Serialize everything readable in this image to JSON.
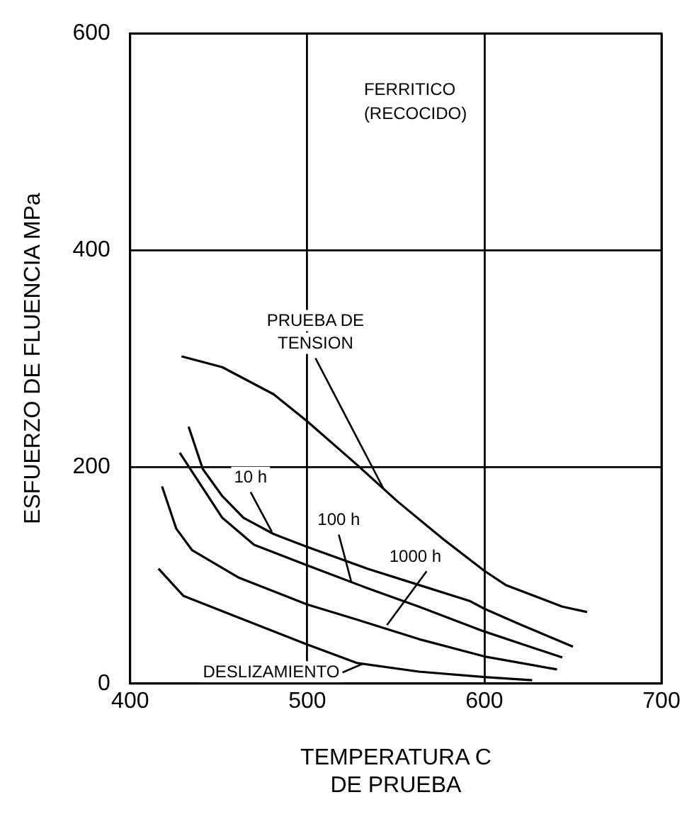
{
  "chart_data": {
    "type": "line",
    "xlabel": "TEMPERATURA C\nDE PRUEBA",
    "ylabel": "ESFUERZO DE FLUENCIA MPa",
    "xlim": [
      400,
      700
    ],
    "xticks": [
      400,
      500,
      600,
      700
    ],
    "ylim": [
      0,
      600
    ],
    "yticks": [
      0,
      200,
      400,
      600
    ],
    "grid": true,
    "legend": false,
    "marker": "none",
    "line_style": "solid",
    "series": [
      {
        "color": "#000000",
        "x": [
          429,
          452,
          481,
          500,
          528,
          551,
          577,
          600,
          612,
          644,
          658
        ],
        "values": [
          302,
          292,
          267,
          242,
          202,
          168,
          133,
          104,
          91,
          71,
          66
        ]
      },
      {
        "color": "#000000",
        "x": [
          433,
          441,
          452,
          464,
          481,
          500,
          534,
          563,
          592,
          600,
          621,
          650
        ],
        "values": [
          237,
          198,
          173,
          153,
          138,
          126,
          106,
          91,
          76,
          69,
          54,
          34
        ]
      },
      {
        "color": "#000000",
        "x": [
          428,
          438,
          452,
          470,
          500,
          534,
          563,
          600,
          644
        ],
        "values": [
          213,
          188,
          153,
          128,
          109,
          88,
          71,
          48,
          24
        ]
      },
      {
        "color": "#000000",
        "x": [
          418,
          426,
          435,
          461,
          500,
          534,
          563,
          600,
          641
        ],
        "values": [
          182,
          143,
          123,
          98,
          73,
          56,
          41,
          25,
          13
        ]
      },
      {
        "color": "#000000",
        "x": [
          416,
          430,
          461,
          500,
          528,
          563,
          600,
          627
        ],
        "values": [
          106,
          81,
          61,
          36,
          19,
          11,
          6,
          3
        ]
      }
    ],
    "annotations": [
      "FERRITICO\n(RECOCIDO)",
      {
        "text": "PRUEBA DE\nTENSION",
        "x": 543,
        "y": 180
      },
      {
        "text": "10 h",
        "x": 480,
        "y": 140
      },
      {
        "text": "100 h",
        "x": 525,
        "y": 93
      },
      {
        "text": "1000 h",
        "x": 545,
        "y": 54
      },
      {
        "text": "DESLIZAMIENTO",
        "x": 531,
        "y": 18
      }
    ]
  }
}
